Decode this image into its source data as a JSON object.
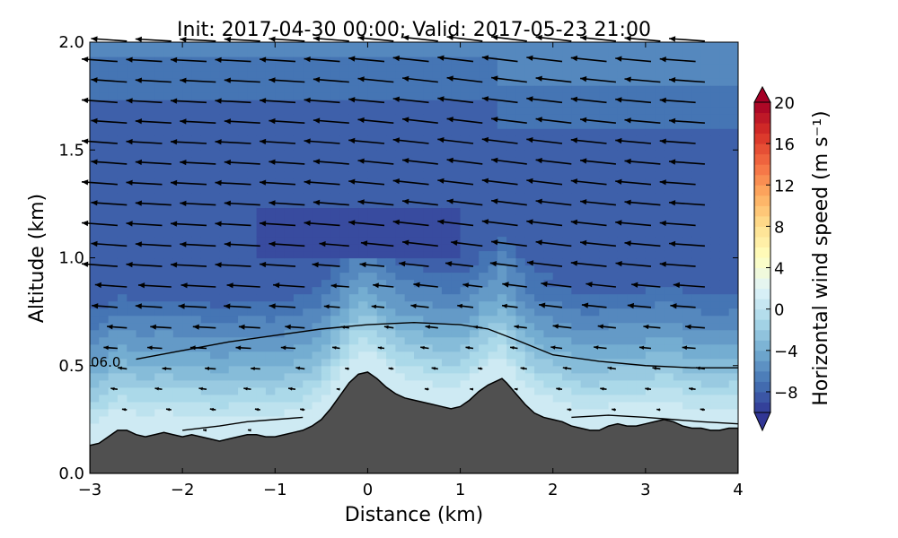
{
  "chart_data": {
    "type": "contourf",
    "title": "Init: 2017-04-30 00:00; Valid: 2017-05-23 21:00",
    "xlabel": "Distance (km)",
    "ylabel": "Altitude (km)",
    "xlim": [
      -3,
      4
    ],
    "ylim": [
      0.0,
      2.0
    ],
    "xticks": [
      -3,
      -2,
      -1,
      0,
      1,
      2,
      3,
      4
    ],
    "xtick_labels": [
      "−3",
      "−2",
      "−1",
      "0",
      "1",
      "2",
      "3",
      "4"
    ],
    "yticks": [
      0.0,
      0.5,
      1.0,
      1.5,
      2.0
    ],
    "ytick_labels": [
      "0.0",
      "0.5",
      "1.0",
      "1.5",
      "2.0"
    ],
    "colorbar": {
      "label": "Horizontal wind speed (m s⁻¹)",
      "range": [
        -10,
        20
      ],
      "extend": "both",
      "ticks": [
        20,
        16,
        12,
        8,
        4,
        0,
        -4,
        -8
      ],
      "tick_labels": [
        "20",
        "16",
        "12",
        "8",
        "4",
        "0",
        "−4",
        "−8"
      ],
      "colormap": "RdYlBu_r"
    },
    "terrain": {
      "color": "#505050",
      "x": [
        -3.0,
        -2.9,
        -2.8,
        -2.7,
        -2.6,
        -2.5,
        -2.4,
        -2.3,
        -2.2,
        -2.1,
        -2.0,
        -1.9,
        -1.8,
        -1.7,
        -1.6,
        -1.5,
        -1.4,
        -1.3,
        -1.2,
        -1.1,
        -1.0,
        -0.9,
        -0.8,
        -0.7,
        -0.6,
        -0.5,
        -0.4,
        -0.3,
        -0.2,
        -0.1,
        0.0,
        0.1,
        0.2,
        0.3,
        0.4,
        0.5,
        0.6,
        0.7,
        0.8,
        0.9,
        1.0,
        1.1,
        1.2,
        1.3,
        1.4,
        1.45,
        1.5,
        1.6,
        1.7,
        1.8,
        1.9,
        2.0,
        2.1,
        2.2,
        2.3,
        2.4,
        2.5,
        2.6,
        2.7,
        2.8,
        2.9,
        3.0,
        3.1,
        3.2,
        3.3,
        3.4,
        3.5,
        3.6,
        3.7,
        3.8,
        3.9,
        4.0
      ],
      "altitude": [
        0.13,
        0.14,
        0.17,
        0.2,
        0.2,
        0.18,
        0.17,
        0.18,
        0.19,
        0.18,
        0.17,
        0.18,
        0.17,
        0.16,
        0.15,
        0.16,
        0.17,
        0.18,
        0.18,
        0.17,
        0.17,
        0.18,
        0.19,
        0.2,
        0.22,
        0.25,
        0.3,
        0.36,
        0.42,
        0.46,
        0.47,
        0.44,
        0.4,
        0.37,
        0.35,
        0.34,
        0.33,
        0.32,
        0.31,
        0.3,
        0.31,
        0.34,
        0.38,
        0.41,
        0.43,
        0.44,
        0.42,
        0.37,
        0.32,
        0.28,
        0.26,
        0.25,
        0.24,
        0.22,
        0.21,
        0.2,
        0.2,
        0.22,
        0.23,
        0.22,
        0.22,
        0.23,
        0.24,
        0.25,
        0.24,
        0.22,
        0.21,
        0.21,
        0.2,
        0.2,
        0.21,
        0.21
      ]
    },
    "annotations": [
      {
        "text": "06.0",
        "x": -3.0,
        "y": 0.5
      }
    ],
    "contour_lines": [
      {
        "x": [
          -2.5,
          -2.0,
          -1.5,
          -1.0,
          -0.5,
          0.0,
          0.5,
          1.0,
          1.3,
          1.6,
          2.0,
          2.5,
          3.0,
          3.5,
          4.0
        ],
        "y": [
          0.53,
          0.57,
          0.61,
          0.64,
          0.67,
          0.69,
          0.7,
          0.69,
          0.67,
          0.62,
          0.55,
          0.52,
          0.5,
          0.49,
          0.49
        ]
      },
      {
        "x": [
          -2.0,
          -1.6,
          -1.3,
          -1.0,
          -0.7
        ],
        "y": [
          0.2,
          0.22,
          0.24,
          0.25,
          0.26
        ]
      },
      {
        "x": [
          2.2,
          2.6,
          3.0,
          3.3,
          3.6,
          4.0
        ],
        "y": [
          0.26,
          0.27,
          0.26,
          0.25,
          0.24,
          0.23
        ]
      }
    ]
  }
}
